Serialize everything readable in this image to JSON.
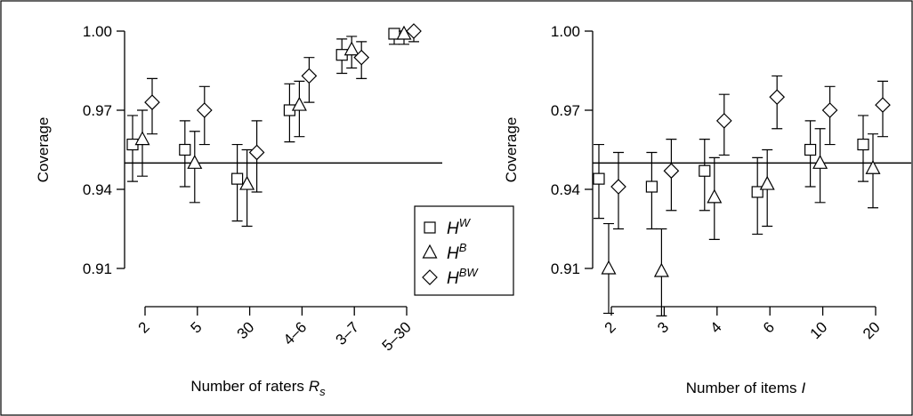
{
  "chart_data": [
    {
      "type": "scatter",
      "title": "",
      "xlabel": "Number of raters",
      "xlabel_symbol": "R",
      "xlabel_subscript": "s",
      "ylabel": "Coverage",
      "ylim": [
        0.91,
        1.0
      ],
      "yticks": [
        "0.91",
        "0.94",
        "0.97",
        "1.00"
      ],
      "reference_line": 0.95,
      "categories": [
        "2",
        "5",
        "30",
        "4–6",
        "3–7",
        "5–30"
      ],
      "series": [
        {
          "marker": "square",
          "values": [
            0.957,
            0.955,
            0.944,
            0.97,
            0.991,
            0.999
          ],
          "lower": [
            0.943,
            0.941,
            0.928,
            0.958,
            0.984,
            0.995
          ],
          "upper": [
            0.968,
            0.966,
            0.957,
            0.98,
            0.997,
            1.0
          ]
        },
        {
          "marker": "triangle",
          "values": [
            0.959,
            0.95,
            0.942,
            0.972,
            0.993,
            0.999
          ],
          "lower": [
            0.945,
            0.935,
            0.926,
            0.96,
            0.986,
            0.995
          ],
          "upper": [
            0.97,
            0.962,
            0.955,
            0.981,
            0.998,
            1.0
          ]
        },
        {
          "marker": "diamond",
          "values": [
            0.973,
            0.97,
            0.954,
            0.983,
            0.99,
            1.0
          ],
          "lower": [
            0.961,
            0.957,
            0.939,
            0.973,
            0.982,
            0.996
          ],
          "upper": [
            0.982,
            0.979,
            0.966,
            0.99,
            0.996,
            1.0
          ]
        }
      ]
    },
    {
      "type": "scatter",
      "title": "",
      "xlabel": "Number of items",
      "xlabel_symbol": "I",
      "ylabel": "Coverage",
      "ylim": [
        0.91,
        1.0
      ],
      "yticks": [
        "0.91",
        "0.94",
        "0.97",
        "1.00"
      ],
      "reference_line": 0.95,
      "categories": [
        "2",
        "3",
        "4",
        "6",
        "10",
        "20"
      ],
      "series": [
        {
          "marker": "square",
          "values": [
            0.944,
            0.941,
            0.947,
            0.939,
            0.955,
            0.957
          ],
          "lower": [
            0.929,
            0.925,
            0.932,
            0.923,
            0.941,
            0.943
          ],
          "upper": [
            0.957,
            0.954,
            0.959,
            0.952,
            0.966,
            0.968
          ]
        },
        {
          "marker": "triangle",
          "values": [
            0.91,
            0.909,
            0.937,
            0.942,
            0.95,
            0.948
          ],
          "lower": [
            0.893,
            0.892,
            0.921,
            0.926,
            0.935,
            0.933
          ],
          "upper": [
            0.927,
            0.925,
            0.952,
            0.955,
            0.963,
            0.961
          ]
        },
        {
          "marker": "diamond",
          "values": [
            0.941,
            0.947,
            0.966,
            0.975,
            0.97,
            0.972
          ],
          "lower": [
            0.925,
            0.932,
            0.953,
            0.963,
            0.957,
            0.96
          ],
          "upper": [
            0.954,
            0.959,
            0.976,
            0.983,
            0.979,
            0.981
          ]
        }
      ]
    }
  ],
  "legend": [
    {
      "marker": "square",
      "label": "H",
      "sup": "W"
    },
    {
      "marker": "triangle",
      "label": "H",
      "sup": "B"
    },
    {
      "marker": "diamond",
      "label": "H",
      "sup": "BW"
    }
  ]
}
